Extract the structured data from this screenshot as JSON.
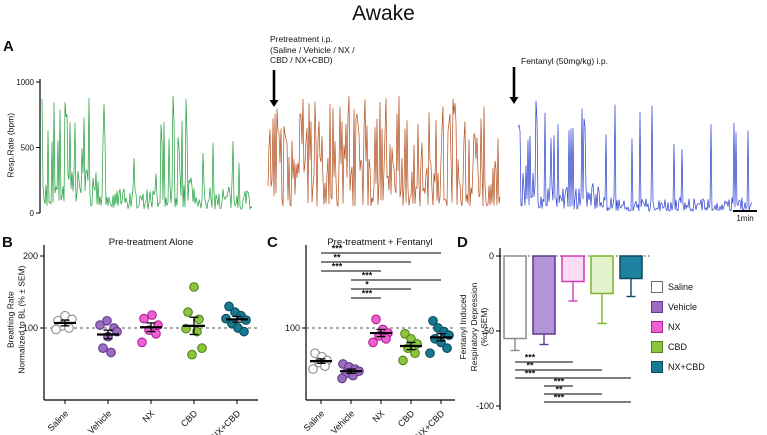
{
  "title": "Awake",
  "panel_labels": {
    "a": "A",
    "b": "B",
    "c": "C",
    "d": "D"
  },
  "chart_data": [
    {
      "id": "panel_a",
      "type": "line",
      "ylabel": "Resp.Rate (bpm)",
      "ylim": [
        0,
        1000
      ],
      "yticks": [
        0,
        500,
        1000
      ],
      "annotation_pretreatment": "Pretreatment i.p.\n(Saline / Vehicle / NX /\nCBD / NX+CBD)",
      "annotation_fentanyl": "Fentanyl (50mg/kg) i.p.",
      "scale_bar_label": "1min",
      "traces": [
        {
          "name": "baseline",
          "color": "#1f9e3a",
          "seed": 7,
          "segments": [
            {
              "f0": 0,
              "f1": 0.3,
              "base": 330,
              "p": 0.25,
              "spike": 880
            },
            {
              "f0": 0.3,
              "f1": 0.55,
              "base": 190,
              "p": 0.08,
              "spike": 480
            },
            {
              "f0": 0.55,
              "f1": 0.73,
              "base": 330,
              "p": 0.3,
              "spike": 900
            },
            {
              "f0": 0.73,
              "f1": 1,
              "base": 240,
              "p": 0.12,
              "spike": 620
            }
          ]
        },
        {
          "name": "post-pretreatment",
          "color": "#b34d1b",
          "seed": 13,
          "segments": [
            {
              "f0": 0,
              "f1": 1,
              "base": 430,
              "p": 0.35,
              "spike": 900
            }
          ]
        },
        {
          "name": "post-fentanyl",
          "color": "#2b3fd0",
          "seed": 29,
          "segments": [
            {
              "f0": 0,
              "f1": 0.08,
              "base": 460,
              "p": 0.5,
              "spike": 950
            },
            {
              "f0": 0.08,
              "f1": 0.35,
              "base": 230,
              "p": 0.2,
              "spike": 800
            },
            {
              "f0": 0.35,
              "f1": 1,
              "base": 120,
              "p": 0.08,
              "spike": 850
            }
          ]
        }
      ]
    },
    {
      "id": "panel_b",
      "type": "scatter",
      "title": "Pre-treatment Alone",
      "ylabel": "Breathing Rate\nNormalized to BL (% ± SEM)",
      "ylim": [
        0,
        220
      ],
      "yticks": [
        100,
        200
      ],
      "reference_line_y": 100,
      "categories": [
        "Saline",
        "Vehicle",
        "NX",
        "CBD",
        "NX+CBD"
      ],
      "groups": [
        {
          "name": "Saline",
          "fill": "#ffffff",
          "edge": "#8c8c8c",
          "mean": 107,
          "sem": 4,
          "points": [
            [
              -7,
              110
            ],
            [
              0,
              117
            ],
            [
              7,
              112
            ],
            [
              -3,
              103
            ],
            [
              4,
              100
            ],
            [
              -9,
              98
            ]
          ]
        },
        {
          "name": "Vehicle",
          "fill": "#9d6cc0",
          "edge": "#5f3a8e",
          "mean": 91,
          "sem": 6,
          "points": [
            [
              -8,
              104
            ],
            [
              -1,
              110
            ],
            [
              6,
              100
            ],
            [
              -5,
              72
            ],
            [
              3,
              66
            ],
            [
              9,
              95
            ],
            [
              0,
              88
            ]
          ]
        },
        {
          "name": "NX",
          "fill": "#ee61d3",
          "edge": "#b31f98",
          "mean": 101,
          "sem": 6,
          "points": [
            [
              -7,
              113
            ],
            [
              1,
              118
            ],
            [
              7,
              104
            ],
            [
              -2,
              97
            ],
            [
              5,
              92
            ],
            [
              -9,
              80
            ]
          ]
        },
        {
          "name": "CBD",
          "fill": "#8cc63f",
          "edge": "#53861a",
          "mean": 103,
          "sem": 12,
          "points": [
            [
              0,
              157
            ],
            [
              -6,
              122
            ],
            [
              5,
              112
            ],
            [
              -8,
              99
            ],
            [
              8,
              72
            ],
            [
              -2,
              63
            ],
            [
              3,
              95
            ]
          ]
        },
        {
          "name": "NX+CBD",
          "fill": "#17798f",
          "edge": "#0b4b5c",
          "mean": 112,
          "sem": 4,
          "points": [
            [
              -8,
              130
            ],
            [
              -2,
              122
            ],
            [
              4,
              117
            ],
            [
              9,
              111
            ],
            [
              -5,
              106
            ],
            [
              1,
              100
            ],
            [
              7,
              95
            ],
            [
              -11,
              113
            ]
          ]
        }
      ]
    },
    {
      "id": "panel_c",
      "type": "scatter",
      "title": "Pre-treatment + Fentanyl",
      "ylim": [
        0,
        220
      ],
      "yticks": [
        100
      ],
      "reference_line_y": 100,
      "categories": [
        "Saline",
        "Vehicle",
        "NX",
        "CBD",
        "NX+CBD"
      ],
      "groups": [
        {
          "name": "Saline",
          "fill": "#ffffff",
          "edge": "#8c8c8c",
          "mean": 54,
          "sem": 3,
          "points": [
            [
              -6,
              65
            ],
            [
              1,
              60
            ],
            [
              6,
              55
            ],
            [
              -2,
              52
            ],
            [
              4,
              47
            ],
            [
              -8,
              43
            ]
          ]
        },
        {
          "name": "Vehicle",
          "fill": "#9d6cc0",
          "edge": "#5f3a8e",
          "mean": 40,
          "sem": 3,
          "points": [
            [
              -8,
              50
            ],
            [
              -2,
              46
            ],
            [
              4,
              43
            ],
            [
              8,
              40
            ],
            [
              -5,
              37
            ],
            [
              2,
              34
            ],
            [
              -9,
              30
            ]
          ]
        },
        {
          "name": "NX",
          "fill": "#ee61d3",
          "edge": "#b31f98",
          "mean": 93,
          "sem": 5,
          "points": [
            [
              -5,
              112
            ],
            [
              2,
              98
            ],
            [
              7,
              93
            ],
            [
              -2,
              89
            ],
            [
              5,
              85
            ],
            [
              -8,
              80
            ]
          ]
        },
        {
          "name": "CBD",
          "fill": "#8cc63f",
          "edge": "#53861a",
          "mean": 75,
          "sem": 5,
          "points": [
            [
              -6,
              92
            ],
            [
              0,
              85
            ],
            [
              6,
              78
            ],
            [
              -3,
              72
            ],
            [
              4,
              65
            ],
            [
              -8,
              55
            ]
          ]
        },
        {
          "name": "NX+CBD",
          "fill": "#17798f",
          "edge": "#0b4b5c",
          "mean": 87,
          "sem": 5,
          "points": [
            [
              -8,
              110
            ],
            [
              -3,
              100
            ],
            [
              3,
              95
            ],
            [
              8,
              90
            ],
            [
              -6,
              85
            ],
            [
              0,
              80
            ],
            [
              6,
              72
            ],
            [
              -11,
              65
            ]
          ]
        }
      ],
      "sig_bars": [
        {
          "label": "***",
          "from": 0,
          "to": 4
        },
        {
          "label": "**",
          "from": 0,
          "to": 3
        },
        {
          "label": "***",
          "from": 0,
          "to": 2
        },
        {
          "label": "***",
          "from": 1,
          "to": 4
        },
        {
          "label": "*",
          "from": 1,
          "to": 3
        },
        {
          "label": "***",
          "from": 1,
          "to": 2
        }
      ]
    },
    {
      "id": "panel_d",
      "type": "bar",
      "ylabel": "Fentanyl Induced\nRespiratory Depression\n(%± SEM)",
      "ylim": [
        -100,
        0
      ],
      "yticks": [
        0,
        -50,
        -100
      ],
      "bars": [
        {
          "name": "Saline",
          "value": -55,
          "sem": 8,
          "fill": "#ffffff",
          "edge": "#8c8c8c"
        },
        {
          "name": "Vehicle",
          "value": -52,
          "sem": 7,
          "fill": "#b394d8",
          "edge": "#5f3a8e"
        },
        {
          "name": "NX",
          "value": -17,
          "sem": 13,
          "fill": "#fbdcf4",
          "edge": "#d53ab6"
        },
        {
          "name": "CBD",
          "value": -25,
          "sem": 20,
          "fill": "#e3f2cd",
          "edge": "#7ab32e"
        },
        {
          "name": "NX+CBD",
          "value": -15,
          "sem": 12,
          "fill": "#1d83a0",
          "edge": "#0b4b5c"
        }
      ],
      "sig_bars": [
        {
          "label": "***",
          "from": 0,
          "to": 2
        },
        {
          "label": "**",
          "from": 0,
          "to": 3
        },
        {
          "label": "***",
          "from": 0,
          "to": 4
        },
        {
          "label": "***",
          "from": 1,
          "to": 2
        },
        {
          "label": "**",
          "from": 1,
          "to": 3
        },
        {
          "label": "***",
          "from": 1,
          "to": 4
        }
      ],
      "legend": [
        {
          "label": "Saline",
          "fill": "#ffffff",
          "edge": "#6e6e6e"
        },
        {
          "label": "Vehicle",
          "fill": "#9d6cc0",
          "edge": "#5f3a8e"
        },
        {
          "label": "NX",
          "fill": "#ee61d3",
          "edge": "#b31f98"
        },
        {
          "label": "CBD",
          "fill": "#8cc63f",
          "edge": "#53861a"
        },
        {
          "label": "NX+CBD",
          "fill": "#17798f",
          "edge": "#0b4b5c"
        }
      ]
    }
  ]
}
